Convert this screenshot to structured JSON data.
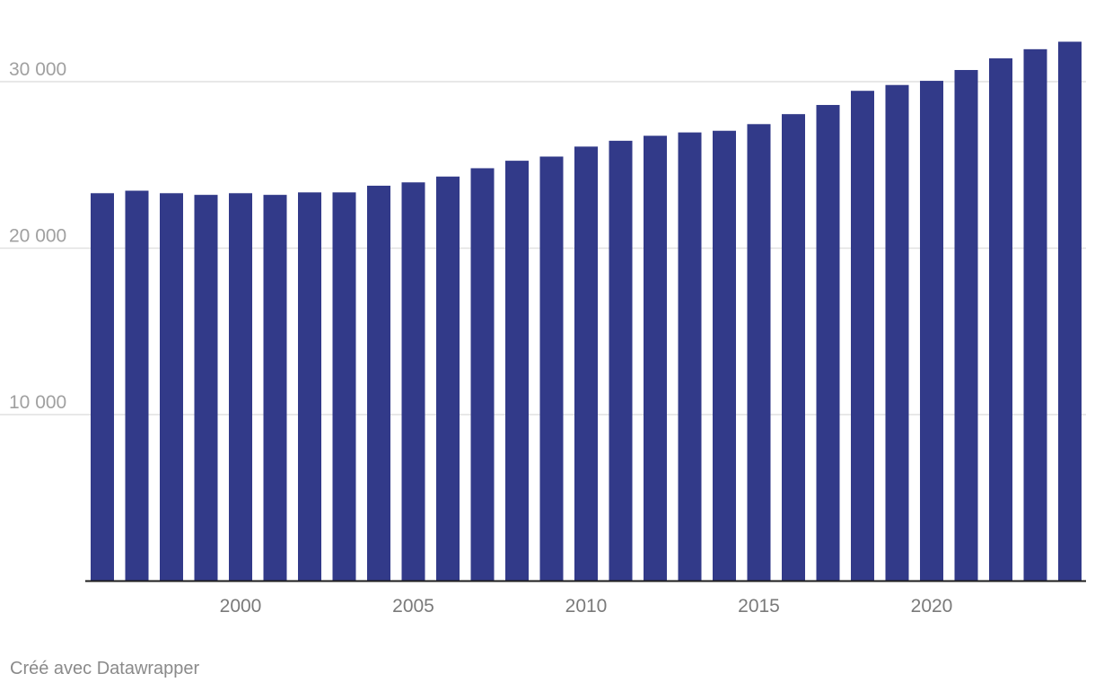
{
  "colors": {
    "bar": "#323a89"
  },
  "credit": "Créé avec Datawrapper",
  "chart_data": {
    "type": "bar",
    "categories": [
      "1996",
      "1997",
      "1998",
      "1999",
      "2000",
      "2001",
      "2002",
      "2003",
      "2004",
      "2005",
      "2006",
      "2007",
      "2008",
      "2009",
      "2010",
      "2011",
      "2012",
      "2013",
      "2014",
      "2015",
      "2016",
      "2017",
      "2018",
      "2019",
      "2020",
      "2021",
      "2022",
      "2023",
      "2024"
    ],
    "values": [
      23300,
      23450,
      23300,
      23200,
      23300,
      23200,
      23350,
      23350,
      23750,
      23950,
      24300,
      24800,
      25250,
      25500,
      26100,
      26450,
      26750,
      26950,
      27050,
      27450,
      28050,
      28600,
      29450,
      29800,
      30050,
      30700,
      31400,
      31950,
      32400
    ],
    "y_ticks": [
      10000,
      20000,
      30000
    ],
    "y_tick_labels": [
      "10 000",
      "20 000",
      "30 000"
    ],
    "x_tick_labels": [
      "2000",
      "2005",
      "2010",
      "2015",
      "2020"
    ],
    "ylim": [
      0,
      33000
    ],
    "grid": true,
    "legend": "none",
    "title": "",
    "xlabel": "",
    "ylabel": ""
  }
}
